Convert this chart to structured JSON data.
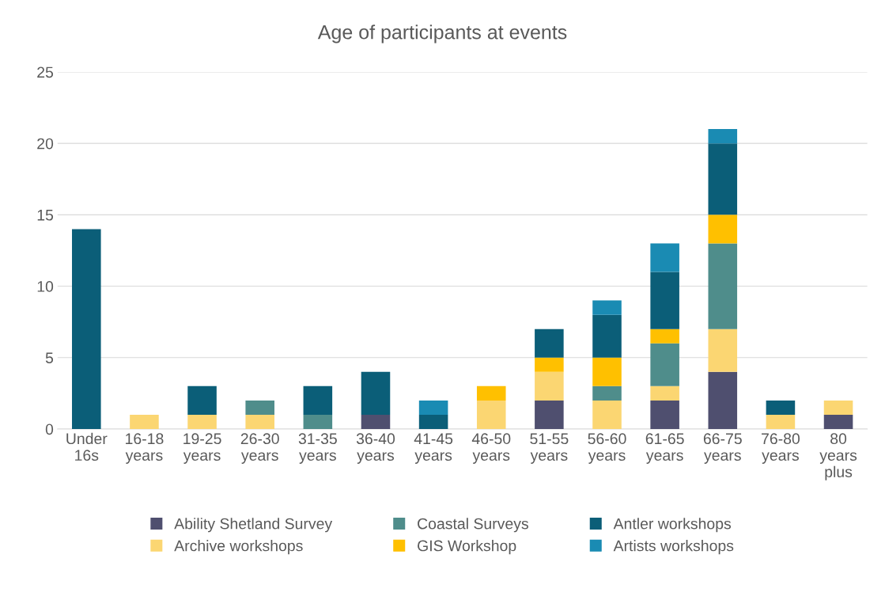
{
  "chart_data": {
    "type": "bar",
    "title": "Age of participants at events",
    "stacked": true,
    "categories": [
      "Under 16s",
      "16-18 years",
      "19-25 years",
      "26-30 years",
      "31-35 years",
      "36-40 years",
      "41-45 years",
      "46-50 years",
      "51-55 years",
      "56-60 years",
      "61-65 years",
      "66-75 years",
      "76-80 years",
      "80 years plus"
    ],
    "series": [
      {
        "name": "Ability Shetland Survey",
        "color": "#4f4f6f",
        "values": [
          0,
          0,
          0,
          0,
          0,
          1,
          0,
          0,
          2,
          0,
          2,
          4,
          0,
          1
        ]
      },
      {
        "name": "Archive workshops",
        "color": "#fbd672",
        "values": [
          0,
          1,
          1,
          1,
          0,
          0,
          0,
          2,
          2,
          2,
          1,
          3,
          1,
          1
        ]
      },
      {
        "name": "Coastal Surveys",
        "color": "#4f8d8b",
        "values": [
          0,
          0,
          0,
          1,
          1,
          0,
          0,
          0,
          0,
          1,
          3,
          6,
          0,
          0
        ]
      },
      {
        "name": "GIS Workshop",
        "color": "#ffc000",
        "values": [
          0,
          0,
          0,
          0,
          0,
          0,
          0,
          1,
          1,
          2,
          1,
          2,
          0,
          0
        ]
      },
      {
        "name": "Antler workshops",
        "color": "#0b5e78",
        "values": [
          14,
          0,
          2,
          0,
          2,
          3,
          1,
          0,
          2,
          3,
          4,
          5,
          1,
          0
        ]
      },
      {
        "name": "Artists workshops",
        "color": "#1a8bb3",
        "values": [
          0,
          0,
          0,
          0,
          0,
          0,
          1,
          0,
          0,
          1,
          2,
          1,
          0,
          0
        ]
      }
    ],
    "ylim": [
      0,
      25
    ],
    "yticks": [
      0,
      5,
      10,
      15,
      20,
      25
    ],
    "grid": "y",
    "legend": "bottom"
  }
}
